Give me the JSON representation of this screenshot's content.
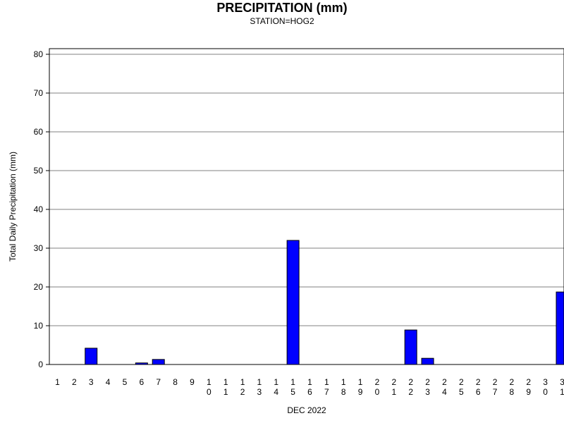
{
  "chart_data": {
    "type": "bar",
    "title": "PRECIPITATION (mm)",
    "subtitle": "STATION=HOG2",
    "xlabel": "DEC 2022",
    "ylabel": "Total Daily Precipitation (mm)",
    "ylim": [
      0,
      80
    ],
    "yticks": [
      0,
      10,
      20,
      30,
      40,
      50,
      60,
      70,
      80
    ],
    "grid": true,
    "categories": [
      "1",
      "2",
      "3",
      "4",
      "5",
      "6",
      "7",
      "8",
      "9",
      "10",
      "11",
      "12",
      "13",
      "14",
      "15",
      "16",
      "17",
      "18",
      "19",
      "20",
      "21",
      "22",
      "23",
      "24",
      "25",
      "26",
      "27",
      "28",
      "29",
      "30",
      "31"
    ],
    "values": [
      0,
      0,
      4.2,
      0,
      0,
      0.4,
      1.3,
      0,
      0,
      0,
      0,
      0,
      0,
      0,
      32,
      0,
      0,
      0,
      0,
      0,
      0,
      8.9,
      1.6,
      0,
      0,
      0,
      0,
      0,
      0,
      0,
      18.7
    ],
    "colors": {
      "bar": "#0000ff",
      "bar_stroke": "#000000",
      "grid": "#808080",
      "axis": "#000000"
    }
  }
}
